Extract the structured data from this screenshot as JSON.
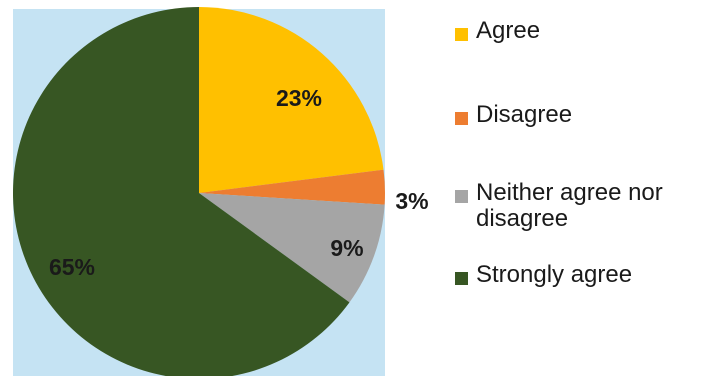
{
  "chart_data": {
    "type": "pie",
    "title": "",
    "start_angle_deg": 0,
    "direction": "clockwise",
    "slices": [
      {
        "label": "Agree",
        "value": 23,
        "display": "23%",
        "color": "#ffc000"
      },
      {
        "label": "Disagree",
        "value": 3,
        "display": "3%",
        "color": "#ed7d31"
      },
      {
        "label": "Neither agree nor disagree",
        "value": 9,
        "display": "9%",
        "color": "#a5a5a5"
      },
      {
        "label": "Strongly agree",
        "value": 65,
        "display": "65%",
        "color": "#375623"
      }
    ],
    "legend_position": "right",
    "background": "#c5e3f3"
  },
  "legend": {
    "items": [
      {
        "label": "Agree",
        "color": "#ffc000"
      },
      {
        "label": "Disagree",
        "color": "#ed7d31"
      },
      {
        "label": "Neither agree nor disagree",
        "color": "#a5a5a5"
      },
      {
        "label": "Strongly agree",
        "color": "#375623"
      }
    ]
  }
}
